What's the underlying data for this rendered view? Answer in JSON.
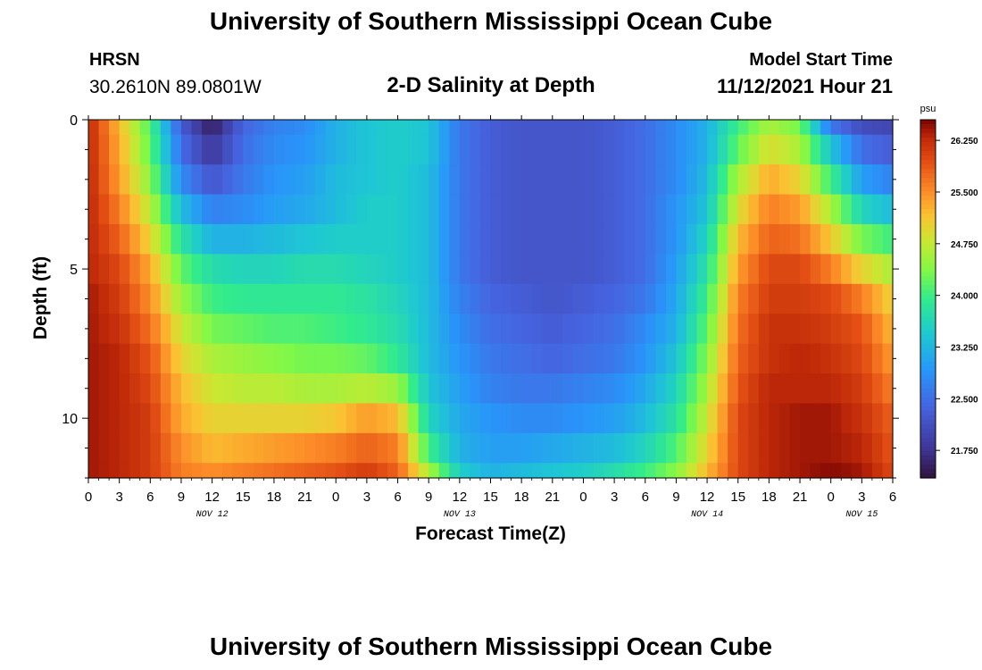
{
  "header": {
    "title": "University of Southern Mississippi Ocean Cube",
    "station": "HRSN",
    "coords": "30.2610N  89.0801W",
    "subtitle": "2-D Salinity at Depth",
    "model_start_label": "Model Start Time",
    "model_start_time": "11/12/2021 Hour 21"
  },
  "footer": {
    "title": "University of Southern Mississippi Ocean Cube"
  },
  "chart_data": {
    "type": "heatmap",
    "title": "2-D Salinity at Depth",
    "xlabel": "Forecast Time(Z)",
    "ylabel": "Depth (ft)",
    "x_unit": "hours since Nov 12 00Z",
    "xlim": [
      0,
      78
    ],
    "ylim": [
      0,
      12
    ],
    "x_tick_labels": [
      "0",
      "3",
      "6",
      "9",
      "12",
      "15",
      "18",
      "21",
      "0",
      "3",
      "6",
      "9",
      "12",
      "15",
      "18",
      "21",
      "0",
      "3",
      "6",
      "9",
      "12",
      "15",
      "18",
      "21",
      "0",
      "3",
      "6"
    ],
    "y_ticks": [
      0,
      5,
      10
    ],
    "y_tick_labels": [
      "0",
      "5",
      "10"
    ],
    "date_labels": [
      {
        "hour": 12,
        "label": "NOV 12"
      },
      {
        "hour": 36,
        "label": "NOV 13"
      },
      {
        "hour": 60,
        "label": "NOV 14"
      },
      {
        "hour": 75,
        "label": "NOV 15"
      }
    ],
    "colorbar": {
      "label": "psu",
      "min": 21.35,
      "max": 26.55,
      "tick_values": [
        21.75,
        22.5,
        23.25,
        24.0,
        24.75,
        25.5,
        26.25
      ],
      "tick_labels": [
        "21.750",
        "22.500",
        "23.250",
        "24.000",
        "24.750",
        "25.500",
        "26.250"
      ]
    },
    "row_depths_ft": [
      0,
      0.5,
      1.5,
      2.5,
      3.5,
      4.5,
      5.5,
      6.5,
      7.5,
      8.5,
      9.5,
      10.5,
      11.5
    ],
    "row_bottoms_ft": [
      0.5,
      1.5,
      2.5,
      3.5,
      4.5,
      5.5,
      6.5,
      7.5,
      8.5,
      9.5,
      10.5,
      11.5,
      12
    ],
    "profile_hours": [
      0,
      3,
      6,
      9,
      12,
      15,
      18,
      21,
      24,
      27,
      30,
      33,
      36,
      39,
      42,
      45,
      48,
      51,
      54,
      57,
      60,
      63,
      66,
      69,
      72,
      75,
      78
    ],
    "salinity": [
      [
        26.3,
        25.2,
        24.1,
        22.3,
        21.5,
        22.4,
        22.7,
        22.8,
        23.2,
        23.4,
        23.5,
        23.4,
        22.6,
        22.3,
        22.2,
        22.2,
        22.2,
        22.3,
        22.5,
        22.8,
        23.2,
        24.0,
        24.6,
        24.3,
        22.6,
        22.1,
        22.0
      ],
      [
        26.3,
        25.3,
        24.2,
        22.5,
        21.8,
        22.5,
        22.8,
        22.9,
        23.2,
        23.4,
        23.5,
        23.4,
        22.6,
        22.3,
        22.2,
        22.2,
        22.2,
        22.3,
        22.5,
        22.8,
        23.2,
        24.2,
        24.9,
        24.6,
        23.4,
        22.5,
        22.3
      ],
      [
        26.3,
        25.4,
        24.4,
        22.8,
        22.2,
        22.6,
        22.9,
        23.0,
        23.3,
        23.4,
        23.5,
        23.3,
        22.6,
        22.3,
        22.2,
        22.2,
        22.2,
        22.3,
        22.5,
        22.8,
        23.3,
        24.6,
        25.3,
        25.0,
        24.0,
        23.0,
        22.7
      ],
      [
        26.3,
        25.6,
        24.7,
        23.3,
        22.7,
        22.8,
        23.0,
        23.1,
        23.3,
        23.5,
        23.5,
        23.3,
        22.6,
        22.3,
        22.2,
        22.2,
        22.2,
        22.3,
        22.5,
        22.9,
        23.4,
        24.9,
        25.6,
        25.4,
        24.6,
        23.6,
        23.3
      ],
      [
        26.3,
        25.8,
        25.0,
        23.8,
        23.2,
        23.2,
        23.3,
        23.4,
        23.5,
        23.5,
        23.5,
        23.3,
        22.6,
        22.3,
        22.2,
        22.2,
        22.2,
        22.3,
        22.5,
        22.9,
        23.6,
        25.2,
        25.8,
        25.7,
        25.1,
        24.3,
        24.0
      ],
      [
        26.3,
        26.0,
        25.3,
        24.2,
        23.7,
        23.6,
        23.6,
        23.7,
        23.7,
        23.6,
        23.5,
        23.3,
        22.6,
        22.3,
        22.2,
        22.2,
        22.2,
        22.3,
        22.5,
        23.0,
        23.8,
        25.4,
        26.0,
        26.0,
        25.6,
        25.0,
        24.6
      ],
      [
        26.4,
        26.1,
        25.5,
        24.5,
        24.0,
        23.9,
        23.9,
        23.9,
        23.9,
        23.8,
        23.6,
        23.3,
        22.7,
        22.4,
        22.3,
        22.2,
        22.3,
        22.4,
        22.6,
        23.1,
        24.0,
        25.6,
        26.1,
        26.1,
        26.0,
        25.6,
        25.0
      ],
      [
        26.4,
        26.2,
        25.7,
        24.8,
        24.3,
        24.2,
        24.1,
        24.1,
        24.0,
        23.9,
        23.7,
        23.3,
        22.8,
        22.5,
        22.4,
        22.3,
        22.4,
        22.5,
        22.8,
        23.2,
        24.2,
        25.7,
        26.2,
        26.2,
        26.1,
        25.9,
        25.2
      ],
      [
        26.4,
        26.3,
        25.9,
        25.0,
        24.6,
        24.5,
        24.4,
        24.3,
        24.3,
        24.2,
        23.9,
        23.3,
        22.9,
        22.6,
        22.5,
        22.4,
        22.5,
        22.6,
        22.9,
        23.4,
        24.4,
        25.8,
        26.2,
        26.3,
        26.2,
        26.0,
        25.4
      ],
      [
        26.4,
        26.3,
        26.0,
        25.2,
        24.8,
        24.7,
        24.7,
        24.6,
        24.6,
        24.7,
        24.5,
        23.4,
        23.0,
        22.7,
        22.6,
        22.6,
        22.7,
        22.8,
        23.1,
        23.6,
        24.6,
        25.9,
        26.3,
        26.3,
        26.3,
        26.1,
        25.6
      ],
      [
        26.4,
        26.3,
        26.1,
        25.3,
        25.0,
        25.0,
        25.0,
        25.0,
        25.1,
        25.4,
        25.2,
        23.6,
        23.1,
        22.9,
        22.8,
        22.8,
        22.9,
        23.0,
        23.3,
        23.8,
        24.8,
        26.0,
        26.3,
        26.4,
        26.4,
        26.2,
        25.8
      ],
      [
        26.4,
        26.3,
        26.1,
        25.5,
        25.2,
        25.3,
        25.4,
        25.5,
        25.6,
        25.8,
        25.6,
        24.0,
        23.2,
        23.0,
        23.0,
        23.1,
        23.2,
        23.3,
        23.6,
        24.1,
        25.0,
        26.0,
        26.3,
        26.4,
        26.4,
        26.3,
        25.9
      ],
      [
        26.4,
        26.3,
        26.1,
        25.6,
        25.5,
        25.6,
        25.7,
        25.8,
        25.9,
        26.1,
        25.8,
        24.6,
        23.5,
        23.2,
        23.3,
        23.4,
        23.5,
        23.7,
        24.0,
        24.4,
        25.2,
        26.0,
        26.3,
        26.4,
        26.5,
        26.4,
        26.0
      ]
    ]
  }
}
